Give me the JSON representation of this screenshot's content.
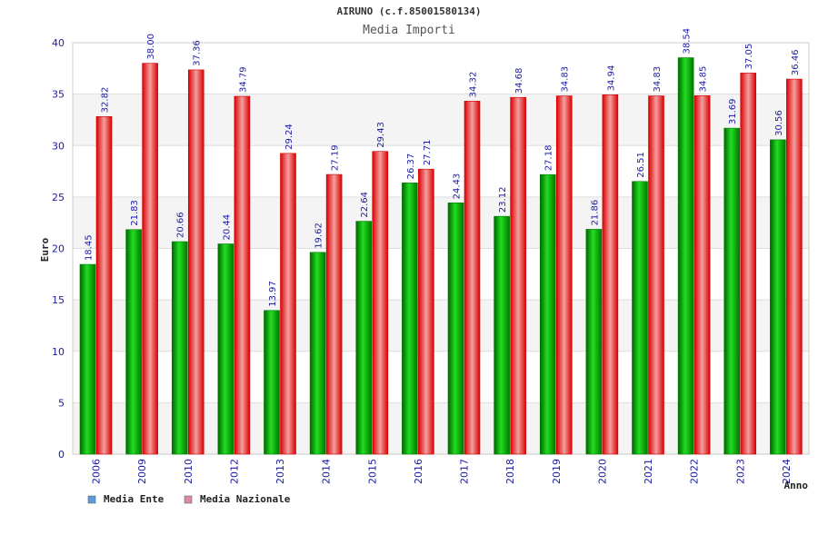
{
  "chart_data": {
    "type": "bar",
    "title": "AIRUNO (c.f.85001580134)",
    "subtitle": "Media Importi",
    "xlabel": "Anno",
    "ylabel": "Euro",
    "ylim": [
      0,
      40
    ],
    "yticks": [
      "0",
      "5",
      "10",
      "15",
      "20",
      "25",
      "30",
      "35",
      "40"
    ],
    "grid": true,
    "legend_position": "bottom-left",
    "categories": [
      "2006",
      "2009",
      "2010",
      "2012",
      "2013",
      "2014",
      "2015",
      "2016",
      "2017",
      "2018",
      "2019",
      "2020",
      "2021",
      "2022",
      "2023",
      "2024"
    ],
    "series": [
      {
        "name": "Media Ente",
        "color": "#00b000",
        "legend_color": "#5b9be0",
        "values": [
          18.45,
          21.83,
          20.66,
          20.44,
          13.97,
          19.62,
          22.64,
          26.37,
          24.43,
          23.12,
          27.18,
          21.86,
          26.51,
          38.54,
          31.69,
          30.56
        ],
        "labels": [
          "18.45",
          "21.83",
          "20.66",
          "20.44",
          "13.97",
          "19.62",
          "22.64",
          "26.37",
          "24.43",
          "23.12",
          "27.18",
          "21.86",
          "26.51",
          "38.54",
          "31.69",
          "30.56"
        ]
      },
      {
        "name": "Media Nazionale",
        "color": "#e8101a",
        "legend_color": "#d98aa8",
        "values": [
          32.82,
          38.0,
          37.36,
          34.79,
          29.24,
          27.19,
          29.43,
          27.71,
          34.32,
          34.68,
          34.83,
          34.94,
          34.83,
          34.85,
          37.05,
          36.46
        ],
        "labels": [
          "32.82",
          "38.00",
          "37.36",
          "34.79",
          "29.24",
          "27.19",
          "29.43",
          "27.71",
          "34.32",
          "34.68",
          "34.83",
          "34.94",
          "34.83",
          "34.85",
          "37.05",
          "36.46"
        ]
      }
    ]
  }
}
